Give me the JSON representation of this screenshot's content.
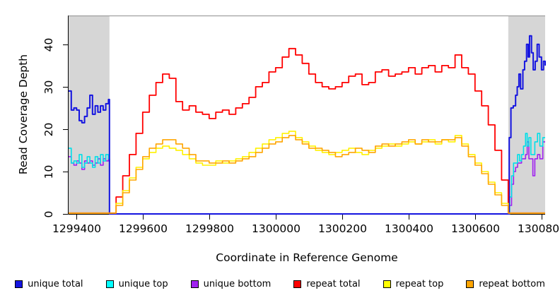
{
  "chart_data": {
    "type": "line",
    "title": "",
    "xlabel": "Coordinate in Reference Genome",
    "ylabel": "Read Coverage Depth",
    "xlim": [
      1299377,
      1300811
    ],
    "ylim": [
      0,
      46.8
    ],
    "x_ticks": [
      1299400,
      1299600,
      1299800,
      1300000,
      1300200,
      1300400,
      1300600,
      1300800
    ],
    "y_ticks": [
      0,
      10,
      20,
      30,
      40
    ],
    "grid": false,
    "legend_position": "bottom",
    "shaded_regions": [
      {
        "label": "flank-left",
        "x0": 1299377,
        "x1": 1299500,
        "color": "#d6d6d6"
      },
      {
        "label": "flank-right",
        "x0": 1300700,
        "x1": 1300811,
        "color": "#d6d6d6"
      }
    ],
    "series": [
      {
        "name": "unique bottom",
        "color": "#a020f0",
        "width": 1.6,
        "points": [
          [
            1299377,
            13.5
          ],
          [
            1299385,
            12
          ],
          [
            1299393,
            11.5
          ],
          [
            1299401,
            12.5
          ],
          [
            1299409,
            12
          ],
          [
            1299417,
            10.5
          ],
          [
            1299425,
            12.5
          ],
          [
            1299433,
            12
          ],
          [
            1299441,
            12.5
          ],
          [
            1299449,
            11.5
          ],
          [
            1299457,
            12
          ],
          [
            1299465,
            13
          ],
          [
            1299473,
            11.5
          ],
          [
            1299481,
            13
          ],
          [
            1299489,
            12.5
          ],
          [
            1299497,
            13
          ],
          [
            1299500,
            0
          ],
          [
            1300700,
            0
          ],
          [
            1300704,
            2
          ],
          [
            1300710,
            7
          ],
          [
            1300716,
            10
          ],
          [
            1300722,
            11
          ],
          [
            1300728,
            12
          ],
          [
            1300734,
            12
          ],
          [
            1300740,
            13
          ],
          [
            1300746,
            13
          ],
          [
            1300752,
            14
          ],
          [
            1300757,
            17
          ],
          [
            1300762,
            13
          ],
          [
            1300768,
            13
          ],
          [
            1300774,
            9
          ],
          [
            1300780,
            13
          ],
          [
            1300788,
            14
          ],
          [
            1300795,
            13
          ],
          [
            1300804,
            17
          ],
          [
            1300811,
            17
          ]
        ]
      },
      {
        "name": "unique top",
        "color": "#00dfe8",
        "width": 1.6,
        "points": [
          [
            1299377,
            15.5
          ],
          [
            1299385,
            12
          ],
          [
            1299393,
            12.5
          ],
          [
            1299401,
            12
          ],
          [
            1299409,
            14
          ],
          [
            1299417,
            11
          ],
          [
            1299425,
            12
          ],
          [
            1299433,
            13.5
          ],
          [
            1299441,
            12
          ],
          [
            1299449,
            11
          ],
          [
            1299457,
            13.5
          ],
          [
            1299465,
            12
          ],
          [
            1299473,
            14
          ],
          [
            1299481,
            12.5
          ],
          [
            1299489,
            14
          ],
          [
            1299497,
            13
          ],
          [
            1299500,
            0
          ],
          [
            1300700,
            0
          ],
          [
            1300704,
            4
          ],
          [
            1300710,
            9
          ],
          [
            1300716,
            12
          ],
          [
            1300722,
            12
          ],
          [
            1300728,
            14
          ],
          [
            1300734,
            12.5
          ],
          [
            1300740,
            14
          ],
          [
            1300746,
            16
          ],
          [
            1300752,
            19
          ],
          [
            1300757,
            16
          ],
          [
            1300762,
            18
          ],
          [
            1300768,
            14
          ],
          [
            1300774,
            14
          ],
          [
            1300780,
            17
          ],
          [
            1300788,
            19
          ],
          [
            1300795,
            16
          ],
          [
            1300804,
            18
          ],
          [
            1300811,
            18
          ]
        ]
      },
      {
        "name": "unique total",
        "color": "#1414e0",
        "width": 2,
        "points": [
          [
            1299377,
            29
          ],
          [
            1299385,
            24.5
          ],
          [
            1299393,
            25
          ],
          [
            1299401,
            24.5
          ],
          [
            1299409,
            22
          ],
          [
            1299417,
            21.5
          ],
          [
            1299425,
            23
          ],
          [
            1299433,
            25
          ],
          [
            1299441,
            28
          ],
          [
            1299449,
            23.5
          ],
          [
            1299457,
            25.5
          ],
          [
            1299465,
            24
          ],
          [
            1299473,
            25.5
          ],
          [
            1299481,
            24.5
          ],
          [
            1299489,
            26
          ],
          [
            1299497,
            27
          ],
          [
            1299500,
            0
          ],
          [
            1300700,
            0
          ],
          [
            1300703,
            18
          ],
          [
            1300708,
            25
          ],
          [
            1300715,
            25.5
          ],
          [
            1300722,
            28
          ],
          [
            1300727,
            30
          ],
          [
            1300732,
            33
          ],
          [
            1300737,
            29.5
          ],
          [
            1300744,
            34
          ],
          [
            1300749,
            36
          ],
          [
            1300755,
            40
          ],
          [
            1300760,
            37
          ],
          [
            1300764,
            42
          ],
          [
            1300770,
            38
          ],
          [
            1300775,
            34
          ],
          [
            1300781,
            36
          ],
          [
            1300787,
            40
          ],
          [
            1300793,
            37
          ],
          [
            1300800,
            34
          ],
          [
            1300806,
            36
          ],
          [
            1300811,
            35
          ]
        ]
      },
      {
        "name": "repeat total",
        "color": "#ff0000",
        "width": 1.8,
        "x_start": 1299500,
        "x_step": 20,
        "extend_flat": true,
        "values": [
          0.2,
          4,
          9,
          14,
          19,
          24,
          28,
          31,
          33,
          32,
          26.5,
          24.5,
          25.5,
          24,
          23.5,
          22.5,
          24,
          24.5,
          23.5,
          25,
          26,
          27.5,
          30,
          31,
          33.5,
          34.5,
          37,
          39,
          37.5,
          35.5,
          33,
          31,
          30,
          29.5,
          30,
          31,
          32.5,
          33,
          30.5,
          31,
          33.5,
          34,
          32.5,
          33,
          33.5,
          34.5,
          33,
          34.5,
          35,
          33.5,
          35,
          34.5,
          37.5,
          34.5,
          33,
          29,
          25.5,
          21,
          15,
          8,
          0.2
        ]
      },
      {
        "name": "repeat top",
        "color": "#fff200",
        "width": 1.6,
        "x_start": 1299500,
        "x_step": 20,
        "extend_flat": true,
        "values": [
          0.2,
          2.5,
          5.5,
          8.5,
          11,
          13,
          14.5,
          15.5,
          16,
          15.5,
          15,
          14,
          13,
          12,
          11.5,
          11.5,
          12.5,
          12,
          12.5,
          13,
          13.5,
          14.5,
          15.5,
          16.5,
          17.5,
          18,
          19,
          19.5,
          18,
          17,
          16,
          15,
          14.5,
          14,
          14.5,
          15,
          15.5,
          14.5,
          14,
          15,
          15.5,
          16,
          16.5,
          16,
          16.5,
          17,
          16.5,
          17,
          17.5,
          16.5,
          17.5,
          17,
          18.5,
          16.5,
          14,
          12,
          10,
          7.5,
          5,
          2.5,
          0.2
        ]
      },
      {
        "name": "repeat bottom",
        "color": "#ffa500",
        "width": 1.6,
        "x_start": 1299500,
        "x_step": 20,
        "extend_flat": true,
        "values": [
          0.2,
          2,
          5,
          8,
          10.5,
          13.5,
          15.5,
          16.5,
          17.5,
          17.5,
          16.5,
          15.5,
          14,
          12.5,
          12.5,
          12,
          12,
          12.5,
          12,
          12.5,
          13,
          13.5,
          14.5,
          15.5,
          16.5,
          17,
          18,
          18.5,
          17.5,
          16.5,
          15.5,
          15.5,
          15,
          14.5,
          13.5,
          14,
          14.5,
          15.5,
          15,
          14.5,
          16,
          16.5,
          16,
          16.5,
          17,
          17.5,
          16.5,
          17.5,
          17,
          17,
          17.5,
          17.5,
          18,
          16,
          13.5,
          11.5,
          9.5,
          7,
          4.5,
          2,
          0.2
        ]
      }
    ]
  },
  "legend": {
    "items": [
      {
        "label": "unique total",
        "color": "#1414e0"
      },
      {
        "label": "unique top",
        "color": "#00ffff"
      },
      {
        "label": "unique bottom",
        "color": "#a020f0"
      },
      {
        "label": "repeat total",
        "color": "#ff0000"
      },
      {
        "label": "repeat top",
        "color": "#ffff00"
      },
      {
        "label": "repeat bottom",
        "color": "#ffa500"
      }
    ]
  }
}
